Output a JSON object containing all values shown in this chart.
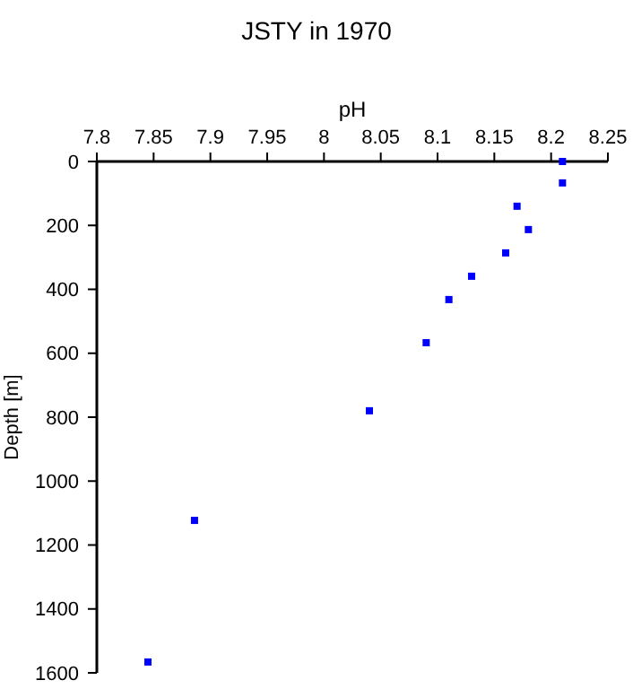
{
  "chart_data": {
    "type": "scatter",
    "title": "JSTY in 1970",
    "xlabel": "pH",
    "ylabel": "Depth [m]",
    "x": [
      8.21,
      8.21,
      8.17,
      8.18,
      8.16,
      8.13,
      8.11,
      8.09,
      8.04,
      7.886,
      7.845
    ],
    "series": [
      {
        "color": "#0000ff",
        "values": [
          0,
          67,
          140,
          213,
          286,
          359,
          432,
          567,
          780,
          1123,
          1566
        ]
      }
    ],
    "xlim": [
      7.8,
      8.25
    ],
    "xticks": [
      7.8,
      7.85,
      7.9,
      7.95,
      8,
      8.05,
      8.1,
      8.15,
      8.2,
      8.25
    ],
    "ylim": [
      1600,
      0
    ],
    "yticks": [
      0,
      200,
      400,
      600,
      800,
      1000,
      1200,
      1400,
      1600
    ],
    "marker": "square",
    "grid": false
  }
}
